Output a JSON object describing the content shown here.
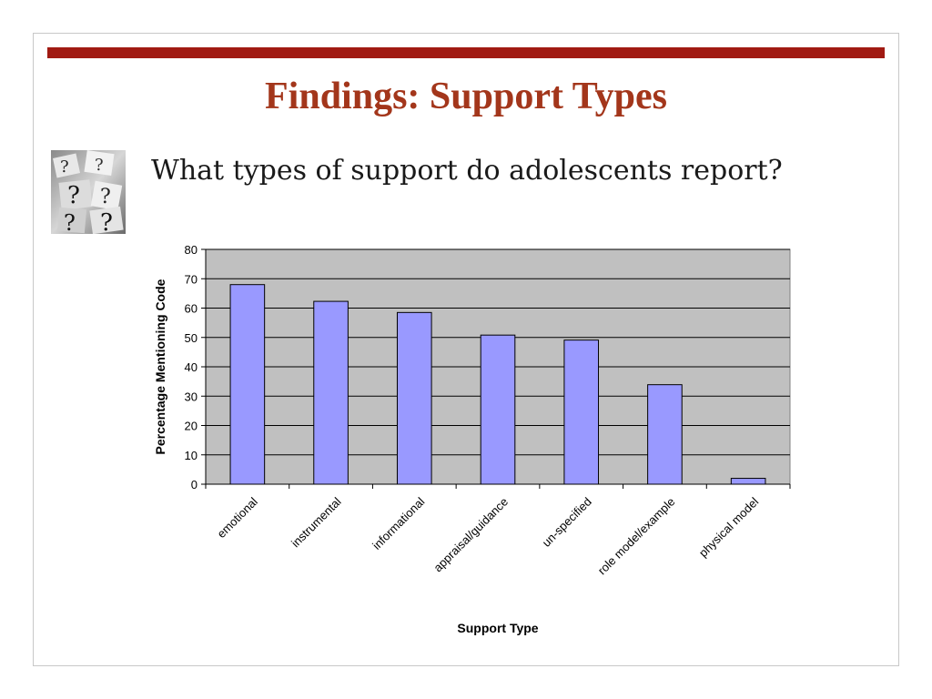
{
  "slide": {
    "title": "Findings: Support Types",
    "question": "What types of support do adolescents report?",
    "bullet_image": "question-marks-image",
    "accent_bar_color": "#a11a12",
    "title_color": "#a3361b"
  },
  "chart_data": {
    "type": "bar",
    "title": "",
    "xlabel": "Support Type",
    "ylabel": "Percentage Mentioning Code",
    "categories": [
      "emotional",
      "instrumental",
      "informational",
      "appraisal/guidance",
      "un-specified",
      "role model/example",
      "physical model"
    ],
    "values": [
      68,
      62.3,
      58.5,
      50.8,
      49.1,
      33.9,
      2
    ],
    "ylim": [
      0,
      80
    ],
    "yticks": [
      0,
      10,
      20,
      30,
      40,
      50,
      60,
      70,
      80
    ],
    "grid": true,
    "legend": "none",
    "bar_color": "#9999ff",
    "plot_background": "#c0c0c0"
  }
}
